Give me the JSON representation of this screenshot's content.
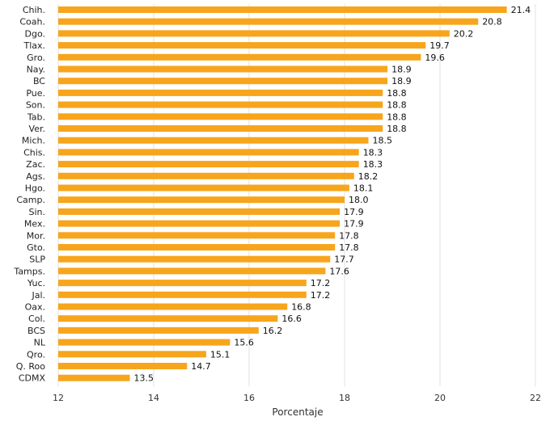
{
  "chart_data": {
    "type": "bar",
    "orientation": "horizontal",
    "categories": [
      "Chih.",
      "Coah.",
      "Dgo.",
      "Tlax.",
      "Gro.",
      "Nay.",
      "BC",
      "Pue.",
      "Son.",
      "Tab.",
      "Ver.",
      "Mich.",
      "Chis.",
      "Zac.",
      "Ags.",
      "Hgo.",
      "Camp.",
      "Sin.",
      "Mex.",
      "Mor.",
      "Gto.",
      "SLP",
      "Tamps.",
      "Yuc.",
      "Jal.",
      "Oax.",
      "Col.",
      "BCS",
      "NL",
      "Qro.",
      "Q. Roo",
      "CDMX"
    ],
    "values": [
      21.4,
      20.8,
      20.2,
      19.7,
      19.6,
      18.9,
      18.9,
      18.8,
      18.8,
      18.8,
      18.8,
      18.5,
      18.3,
      18.3,
      18.2,
      18.1,
      18.0,
      17.9,
      17.9,
      17.8,
      17.8,
      17.7,
      17.6,
      17.2,
      17.2,
      16.8,
      16.6,
      16.2,
      15.6,
      15.1,
      14.7,
      13.5
    ],
    "value_labels": [
      "21.4",
      "20.8",
      "20.2",
      "19.7",
      "19.6",
      "18.9",
      "18.9",
      "18.8",
      "18.8",
      "18.8",
      "18.8",
      "18.5",
      "18.3",
      "18.3",
      "18.2",
      "18.1",
      "18.0",
      "17.9",
      "17.9",
      "17.8",
      "17.8",
      "17.7",
      "17.6",
      "17.2",
      "17.2",
      "16.8",
      "16.6",
      "16.2",
      "15.6",
      "15.1",
      "14.7",
      "13.5"
    ],
    "xlabel": "Porcentaje",
    "ylabel": "",
    "title": "",
    "xlim": [
      12,
      22
    ],
    "xticks": [
      "12",
      "14",
      "16",
      "18",
      "20",
      "22"
    ],
    "grid": "vertical",
    "legend": "none",
    "bar_color": "#F7A51C",
    "grid_color": "#E2E2E2"
  }
}
